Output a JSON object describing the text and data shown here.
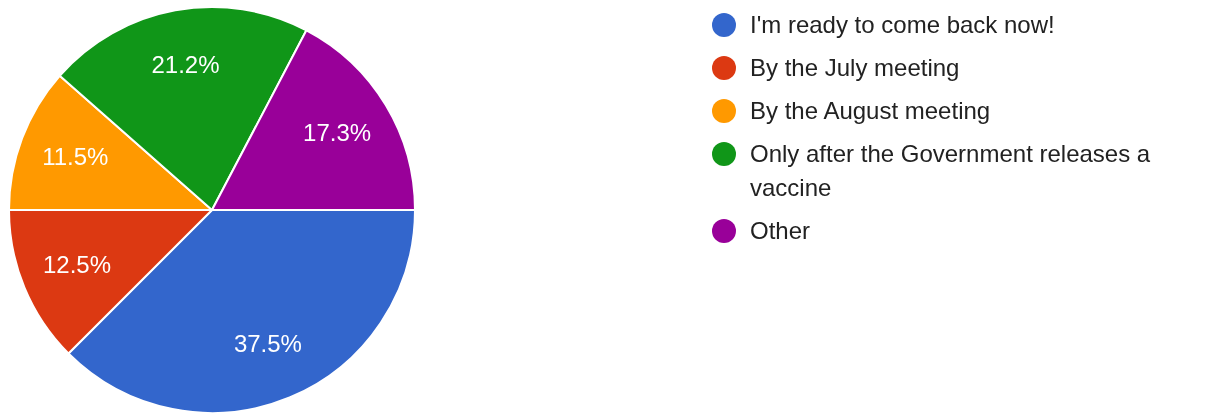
{
  "chart_data": {
    "type": "pie",
    "categories": [
      "I'm ready to come back now!",
      "By the July meeting",
      "By the August meeting",
      "Only after the Government releases a vaccine",
      "Other"
    ],
    "values": [
      37.5,
      12.5,
      11.5,
      21.2,
      17.3
    ],
    "value_labels": [
      "37.5%",
      "12.5%",
      "11.5%",
      "21.2%",
      "17.3%"
    ],
    "colors": [
      "#3366cc",
      "#dc3912",
      "#ff9900",
      "#109618",
      "#990099"
    ],
    "legend": "right"
  }
}
